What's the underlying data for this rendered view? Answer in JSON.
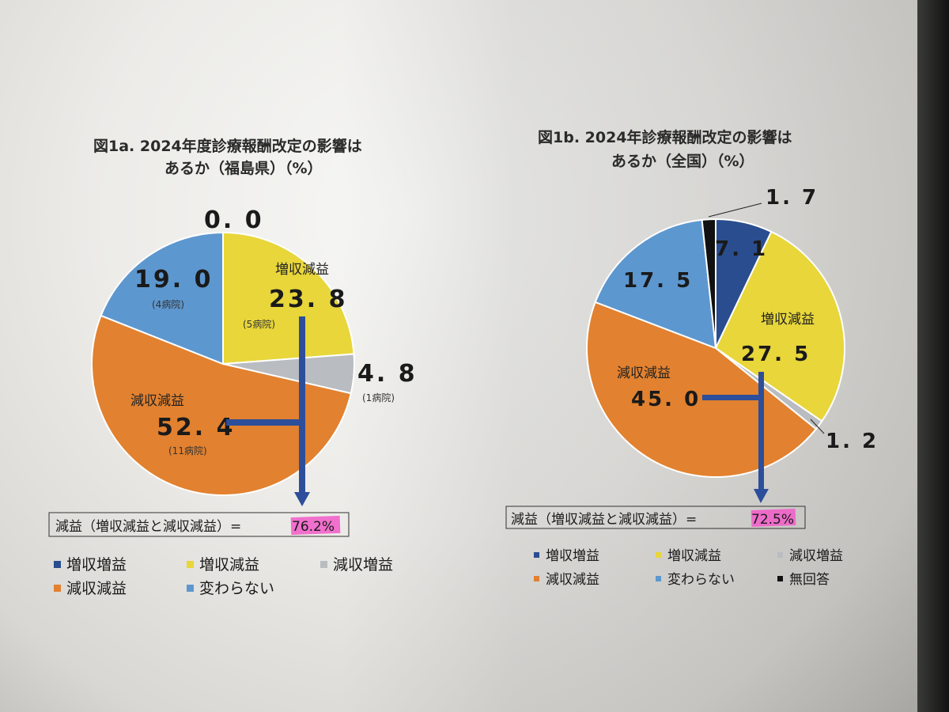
{
  "colors": {
    "dark_blue": "#2a4d8f",
    "yellow": "#e8d63a",
    "gray": "#b9bcc0",
    "orange": "#e2812f",
    "light_blue": "#5d97cf",
    "black": "#111111",
    "arrow": "#2d4e9a",
    "highlight": "#f25ac8"
  },
  "chart_data": [
    {
      "type": "pie",
      "title_line1": "図1a. 2024年度診療報酬改定の影響は",
      "title_line2": "あるか（福島県）（%）",
      "slices": [
        {
          "label": "増収増益",
          "value": 0.0,
          "display": "0. 0",
          "color": "#2a4d8f"
        },
        {
          "label": "増収減益",
          "value": 23.8,
          "display": "23. 8",
          "count": "(5病院)",
          "color": "#e8d63a"
        },
        {
          "label": "減収増益",
          "value": 4.8,
          "display": "4. 8",
          "count": "(1病院)",
          "color": "#b9bcc0"
        },
        {
          "label": "減収減益",
          "value": 52.4,
          "display": "52. 4",
          "count": "(11病院)",
          "color": "#e2812f"
        },
        {
          "label": "変わらない",
          "value": 19.0,
          "display": "19. 0",
          "count": "(4病院)",
          "color": "#5d97cf"
        }
      ],
      "summary_prefix": "減益（増収減益と減収減益）=",
      "summary_value": "76.2%",
      "legend": [
        {
          "label": "増収増益",
          "color": "#2a4d8f"
        },
        {
          "label": "増収減益",
          "color": "#e8d63a"
        },
        {
          "label": "減収増益",
          "color": "#b9bcc0"
        },
        {
          "label": "減収減益",
          "color": "#e2812f"
        },
        {
          "label": "変わらない",
          "color": "#5d97cf"
        }
      ]
    },
    {
      "type": "pie",
      "title_line1": "図1b. 2024年診療報酬改定の影響は",
      "title_line2": "あるか（全国）（%）",
      "slices": [
        {
          "label": "増収増益",
          "value": 7.1,
          "display": "7. 1",
          "color": "#2a4d8f"
        },
        {
          "label": "増収減益",
          "value": 27.5,
          "display": "27. 5",
          "color": "#e8d63a"
        },
        {
          "label": "減収増益",
          "value": 1.2,
          "display": "1. 2",
          "color": "#b9bcc0"
        },
        {
          "label": "減収減益",
          "value": 45.0,
          "display": "45. 0",
          "color": "#e2812f"
        },
        {
          "label": "変わらない",
          "value": 17.5,
          "display": "17. 5",
          "color": "#5d97cf"
        },
        {
          "label": "無回答",
          "value": 1.7,
          "display": "1. 7",
          "color": "#111111"
        }
      ],
      "summary_prefix": "減益（増収減益と減収減益）=",
      "summary_value": "72.5%",
      "legend": [
        {
          "label": "増収増益",
          "color": "#2a4d8f"
        },
        {
          "label": "増収減益",
          "color": "#e8d63a"
        },
        {
          "label": "減収増益",
          "color": "#b9bcc0"
        },
        {
          "label": "減収減益",
          "color": "#e2812f"
        },
        {
          "label": "変わらない",
          "color": "#5d97cf"
        },
        {
          "label": "無回答",
          "color": "#111111"
        }
      ]
    }
  ]
}
